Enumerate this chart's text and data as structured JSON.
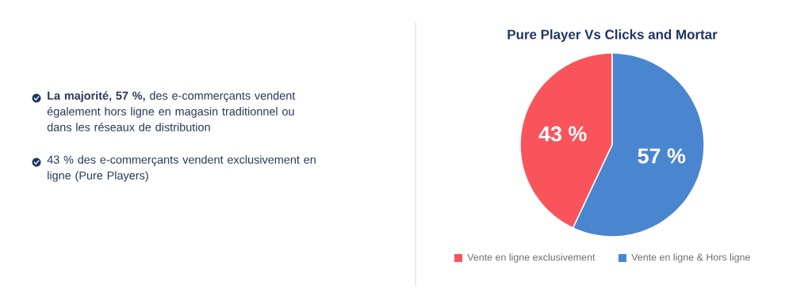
{
  "chart_data": {
    "type": "pie",
    "title": "Pure Player Vs Clicks and Mortar",
    "categories": [
      "Vente en ligne exclusivement",
      "Vente en ligne & Hors ligne"
    ],
    "values": [
      43,
      57
    ],
    "colors": [
      "#f9545b",
      "#4a86cf"
    ],
    "value_labels": [
      "43 %",
      "57 %"
    ],
    "legend": "bottom",
    "annotations": [
      "**La majorité, 57 %,** des e-commerçants vendent également hors ligne en magasin traditionnel ou dans les réseaux de distribution",
      "43 % des e-commerçants vendent exclusivement en ligne (Pure Players)"
    ]
  }
}
